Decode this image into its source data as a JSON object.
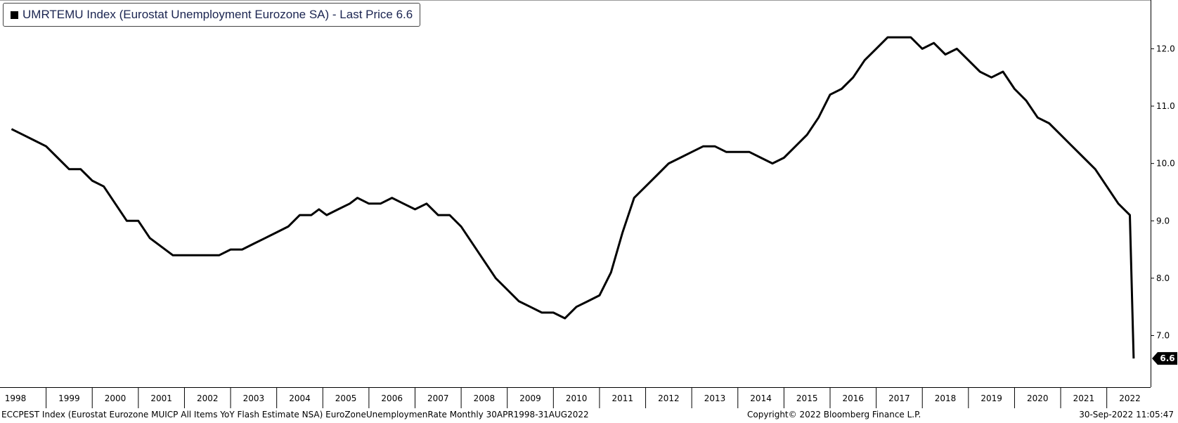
{
  "legend": {
    "label": "UMRTEMU Index (Eurostat Unemployment Eurozone SA) - Last Price 6.6",
    "color": "#000000"
  },
  "footer": {
    "left": "ECCPEST Index (Eurostat Eurozone MUICP All Items YoY Flash Estimate NSA) EuroZoneUnemploymenRate  Monthly 30APR1998-31AUG2022",
    "center": "Copyright© 2022 Bloomberg Finance L.P.",
    "right": "30-Sep-2022 11:05:47"
  },
  "chart_data": {
    "type": "line",
    "title": "",
    "xlabel": "",
    "ylabel": "",
    "y_ticks": [
      "7.0",
      "8.0",
      "9.0",
      "10.0",
      "11.0",
      "12.0"
    ],
    "ylim": [
      6.1,
      12.85
    ],
    "x_ticks": [
      "1998",
      "1999",
      "2000",
      "2001",
      "2002",
      "2003",
      "2004",
      "2005",
      "2006",
      "2007",
      "2008",
      "2009",
      "2010",
      "2011",
      "2012",
      "2013",
      "2014",
      "2015",
      "2016",
      "2017",
      "2018",
      "2019",
      "2020",
      "2021",
      "2022"
    ],
    "x_range": [
      "1998-04",
      "2022-08"
    ],
    "grid": false,
    "legend_position": "top-left",
    "last_value_label": "6.6",
    "series": [
      {
        "name": "UMRTEMU Index (Eurostat Unemployment Eurozone SA)",
        "color": "#000000",
        "points": [
          [
            "1998-04",
            10.6
          ],
          [
            "1998-07",
            10.5
          ],
          [
            "1998-10",
            10.4
          ],
          [
            "1999-01",
            10.3
          ],
          [
            "1999-04",
            10.1
          ],
          [
            "1999-07",
            9.9
          ],
          [
            "1999-10",
            9.9
          ],
          [
            "2000-01",
            9.7
          ],
          [
            "2000-04",
            9.6
          ],
          [
            "2000-07",
            9.3
          ],
          [
            "2000-10",
            9.0
          ],
          [
            "2001-01",
            9.0
          ],
          [
            "2001-04",
            8.7
          ],
          [
            "2001-10",
            8.4
          ],
          [
            "2002-04",
            8.4
          ],
          [
            "2002-10",
            8.4
          ],
          [
            "2003-01",
            8.5
          ],
          [
            "2003-04",
            8.5
          ],
          [
            "2003-07",
            8.6
          ],
          [
            "2003-10",
            8.7
          ],
          [
            "2004-01",
            8.8
          ],
          [
            "2004-04",
            8.9
          ],
          [
            "2004-07",
            9.1
          ],
          [
            "2004-10",
            9.1
          ],
          [
            "2004-12",
            9.2
          ],
          [
            "2005-02",
            9.1
          ],
          [
            "2005-05",
            9.2
          ],
          [
            "2005-08",
            9.3
          ],
          [
            "2005-10",
            9.4
          ],
          [
            "2006-01",
            9.3
          ],
          [
            "2006-04",
            9.3
          ],
          [
            "2006-07",
            9.4
          ],
          [
            "2006-10",
            9.3
          ],
          [
            "2007-01",
            9.2
          ],
          [
            "2007-04",
            9.3
          ],
          [
            "2007-07",
            9.1
          ],
          [
            "2007-10",
            9.1
          ],
          [
            "2008-01",
            8.9
          ],
          [
            "2008-04",
            8.6
          ],
          [
            "2008-07",
            8.3
          ],
          [
            "2008-10",
            8.0
          ],
          [
            "2009-01",
            7.8
          ],
          [
            "2009-04",
            7.6
          ],
          [
            "2009-07",
            7.5
          ],
          [
            "2009-10",
            7.4
          ],
          [
            "2010-01",
            7.4
          ],
          [
            "2010-04",
            7.3
          ],
          [
            "2010-07",
            7.5
          ],
          [
            "2010-10",
            7.6
          ],
          [
            "2011-01",
            7.7
          ],
          [
            "2011-04",
            8.1
          ],
          [
            "2011-07",
            8.8
          ],
          [
            "2011-10",
            9.4
          ],
          [
            "2012-01",
            9.6
          ],
          [
            "2012-04",
            9.8
          ],
          [
            "2012-07",
            10.0
          ],
          [
            "2012-10",
            10.1
          ],
          [
            "2013-01",
            10.2
          ],
          [
            "2013-04",
            10.3
          ],
          [
            "2013-07",
            10.3
          ],
          [
            "2013-10",
            10.2
          ],
          [
            "2014-01",
            10.2
          ],
          [
            "2014-04",
            10.2
          ],
          [
            "2014-07",
            10.1
          ],
          [
            "2014-10",
            10.0
          ],
          [
            "2015-01",
            10.1
          ],
          [
            "2015-04",
            10.3
          ],
          [
            "2015-07",
            10.5
          ],
          [
            "2015-10",
            10.8
          ],
          [
            "2016-01",
            11.2
          ],
          [
            "2016-04",
            11.3
          ],
          [
            "2016-07",
            11.5
          ],
          [
            "2016-10",
            11.8
          ],
          [
            "2017-01",
            12.0
          ],
          [
            "2017-04",
            12.2
          ],
          [
            "2017-07",
            12.2
          ],
          [
            "2017-10",
            12.2
          ],
          [
            "2018-01",
            12.0
          ],
          [
            "2018-04",
            12.1
          ],
          [
            "2018-07",
            11.9
          ],
          [
            "2018-10",
            12.0
          ],
          [
            "2019-01",
            11.8
          ],
          [
            "2019-04",
            11.6
          ],
          [
            "2019-07",
            11.5
          ],
          [
            "2019-10",
            11.6
          ],
          [
            "2020-01",
            11.3
          ],
          [
            "2020-04",
            11.1
          ],
          [
            "2020-07",
            10.8
          ],
          [
            "2020-10",
            10.7
          ],
          [
            "2021-01",
            10.5
          ],
          [
            "2021-04",
            10.3
          ],
          [
            "2021-07",
            10.1
          ],
          [
            "2021-10",
            9.9
          ],
          [
            "2022-01",
            9.6
          ],
          [
            "2022-04",
            9.3
          ],
          [
            "2022-07",
            9.1
          ],
          [
            "2022-08",
            6.6
          ]
        ]
      }
    ]
  }
}
